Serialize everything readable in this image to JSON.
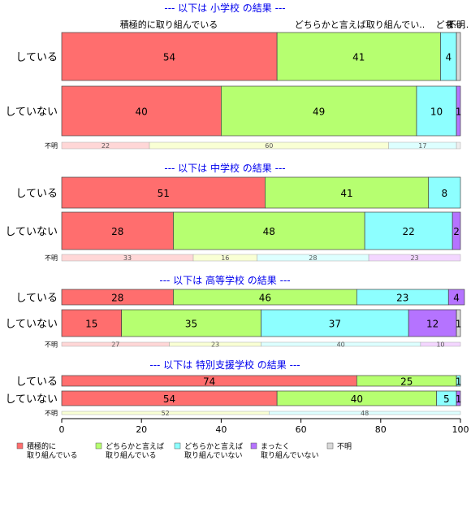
{
  "chart_data": {
    "type": "bar",
    "orientation": "horizontal",
    "stacked": true,
    "xlim": [
      0,
      100
    ],
    "x_ticks": [
      "0",
      "20",
      "40",
      "60",
      "80",
      "100"
    ],
    "top_labels": [
      "積極的に取り組んでいる",
      "どちらかと言えば取り組んでい..",
      "どち..",
      "まっ..",
      "不明"
    ],
    "colors": {
      "積極的に取り組んでいる": "#ff6e6e",
      "どちらかと言えば取り組んでいる": "#b6ff70",
      "どちらかと言えば取り組んでいない": "#8dffff",
      "まったく取り組んでいない": "#b573ff",
      "不明": "#d9d9d9"
    },
    "panels": [
      {
        "title": "--- 以下は 小学校 の結果 ---",
        "rows": [
          {
            "label": "している",
            "values": [
              54,
              41,
              4,
              0,
              1
            ],
            "labels": [
              "54",
              "41",
              "4",
              "",
              ""
            ]
          },
          {
            "label": "していない",
            "values": [
              40,
              49,
              10,
              1,
              0
            ],
            "labels": [
              "40",
              "49",
              "10",
              "1",
              ""
            ]
          },
          {
            "label": "不明",
            "small": true,
            "values": [
              22,
              60,
              17,
              0,
              1
            ],
            "labels": [
              "22",
              "60",
              "17",
              "",
              ""
            ]
          }
        ]
      },
      {
        "title": "--- 以下は 中学校 の結果 ---",
        "rows": [
          {
            "label": "している",
            "values": [
              51,
              41,
              8,
              0,
              0
            ],
            "labels": [
              "51",
              "41",
              "8",
              "",
              ""
            ]
          },
          {
            "label": "していない",
            "values": [
              28,
              48,
              22,
              2,
              0
            ],
            "labels": [
              "28",
              "48",
              "22",
              "2",
              ""
            ]
          },
          {
            "label": "不明",
            "small": true,
            "values": [
              33,
              16,
              28,
              23,
              0
            ],
            "labels": [
              "33",
              "16",
              "28",
              "23",
              ""
            ]
          }
        ]
      },
      {
        "title": "--- 以下は 高等学校 の結果 ---",
        "rows": [
          {
            "label": "している",
            "values": [
              28,
              46,
              23,
              4,
              0
            ],
            "labels": [
              "28",
              "46",
              "23",
              "4",
              ""
            ]
          },
          {
            "label": "していない",
            "values": [
              15,
              35,
              37,
              12,
              1
            ],
            "labels": [
              "15",
              "35",
              "37",
              "12",
              "1"
            ]
          },
          {
            "label": "不明",
            "small": true,
            "values": [
              27,
              23,
              40,
              10,
              0
            ],
            "labels": [
              "27",
              "23",
              "40",
              "10",
              ""
            ]
          }
        ]
      },
      {
        "title": "--- 以下は 特別支援学校 の結果 ---",
        "rows": [
          {
            "label": "している",
            "values": [
              74,
              25,
              1,
              0,
              0
            ],
            "labels": [
              "74",
              "25",
              "1",
              "",
              ""
            ]
          },
          {
            "label": "していない",
            "values": [
              54,
              40,
              5,
              1,
              0
            ],
            "labels": [
              "54",
              "40",
              "5",
              "1",
              ""
            ]
          },
          {
            "label": "不明",
            "small": true,
            "values": [
              0,
              52,
              48,
              0,
              0
            ],
            "labels": [
              "",
              "52",
              "48",
              "",
              ""
            ]
          }
        ]
      }
    ],
    "legend": {
      "placement": "bottom",
      "items": [
        {
          "lines": [
            "積極的に",
            "取り組んでいる"
          ],
          "color": "#ff6e6e"
        },
        {
          "lines": [
            "どちらかと言えば",
            "取り組んでいる"
          ],
          "color": "#b6ff70"
        },
        {
          "lines": [
            "どちらかと言えば",
            "取り組んでいない"
          ],
          "color": "#8dffff"
        },
        {
          "lines": [
            "まったく",
            "取り組んでいない"
          ],
          "color": "#b573ff"
        },
        {
          "lines": [
            "不明"
          ],
          "color": "#d9d9d9"
        }
      ]
    }
  }
}
